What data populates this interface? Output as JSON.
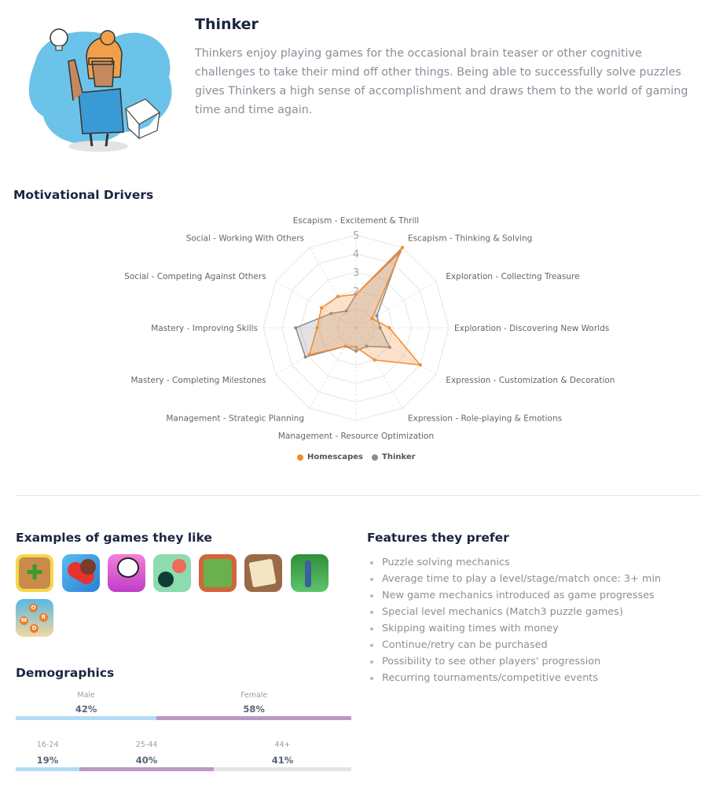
{
  "profile": {
    "title": "Thinker",
    "description": "Thinkers enjoy playing games for the occasional brain teaser or other cognitive challenges to take their mind off other things. Being able to successfully solve puzzles gives Thinkers a high sense of accomplishment and draws them to the world of gaming time and time again.",
    "illustration": "person-with-lightbulb-and-cube"
  },
  "motivational_drivers": {
    "heading": "Motivational Drivers",
    "chart_data": {
      "type": "radar",
      "axes": [
        "Escapism - Excitement & Thrill",
        "Escapism - Thinking & Solving",
        "Exploration - Collecting Treasure",
        "Exploration - Discovering New Worlds",
        "Expression - Customization & Decoration",
        "Expression - Role-playing & Emotions",
        "Management - Resource Optimization",
        "Management - Strategic Planning",
        "Mastery - Completing Milestones",
        "Mastery - Improving Skills",
        "Social - Competing Against Others",
        "Social - Working With Others"
      ],
      "ticks": [
        "1",
        "2",
        "3",
        "4",
        "5"
      ],
      "range": [
        0,
        5
      ],
      "series": [
        {
          "name": "Homescapes",
          "color": "#f28a2e",
          "values": [
            1.8,
            5.0,
            1.0,
            1.8,
            4.0,
            2.0,
            1.05,
            1.15,
            2.9,
            2.1,
            2.15,
            1.95
          ]
        },
        {
          "name": "Thinker",
          "color": "#8c8c8c",
          "values": [
            1.8,
            4.7,
            1.3,
            1.3,
            2.1,
            1.15,
            1.25,
            1.15,
            3.15,
            3.25,
            1.55,
            1.05
          ]
        }
      ],
      "legend_position": "bottom"
    }
  },
  "games": {
    "heading": "Examples of games they like",
    "icons": [
      "jigsaw-puzzle-game-icon",
      "candy-crush-game-icon",
      "panda-pop-game-icon",
      "dots-game-icon",
      "solitaire-game-icon",
      "mahjong-game-icon",
      "gardenscapes-game-icon",
      "word-game-icon"
    ],
    "word_letters": [
      "W",
      "O",
      "R",
      "D"
    ]
  },
  "features": {
    "heading": "Features they prefer",
    "items": [
      "Puzzle solving mechanics",
      "Average time to play a level/stage/match once: 3+ min",
      "New game mechanics introduced as game progresses",
      "Special level mechanics (Match3 puzzle games)",
      "Skipping waiting times with money",
      "Continue/retry can be purchased",
      "Possibility to see other players' progression",
      "Recurring tournaments/competitive events"
    ]
  },
  "demographics": {
    "heading": "Demographics",
    "gender": [
      {
        "label": "Male",
        "value": "42%",
        "share": 42,
        "color": "#b3dcf7"
      },
      {
        "label": "Female",
        "value": "58%",
        "share": 58,
        "color": "#bb98c4"
      }
    ],
    "age": [
      {
        "label": "16-24",
        "value": "19%",
        "share": 19,
        "color": "#b3dcf7"
      },
      {
        "label": "25-44",
        "value": "40%",
        "share": 40,
        "color": "#bb98c4"
      },
      {
        "label": "44+",
        "value": "41%",
        "share": 41,
        "color": "#e4e4e4"
      }
    ]
  }
}
